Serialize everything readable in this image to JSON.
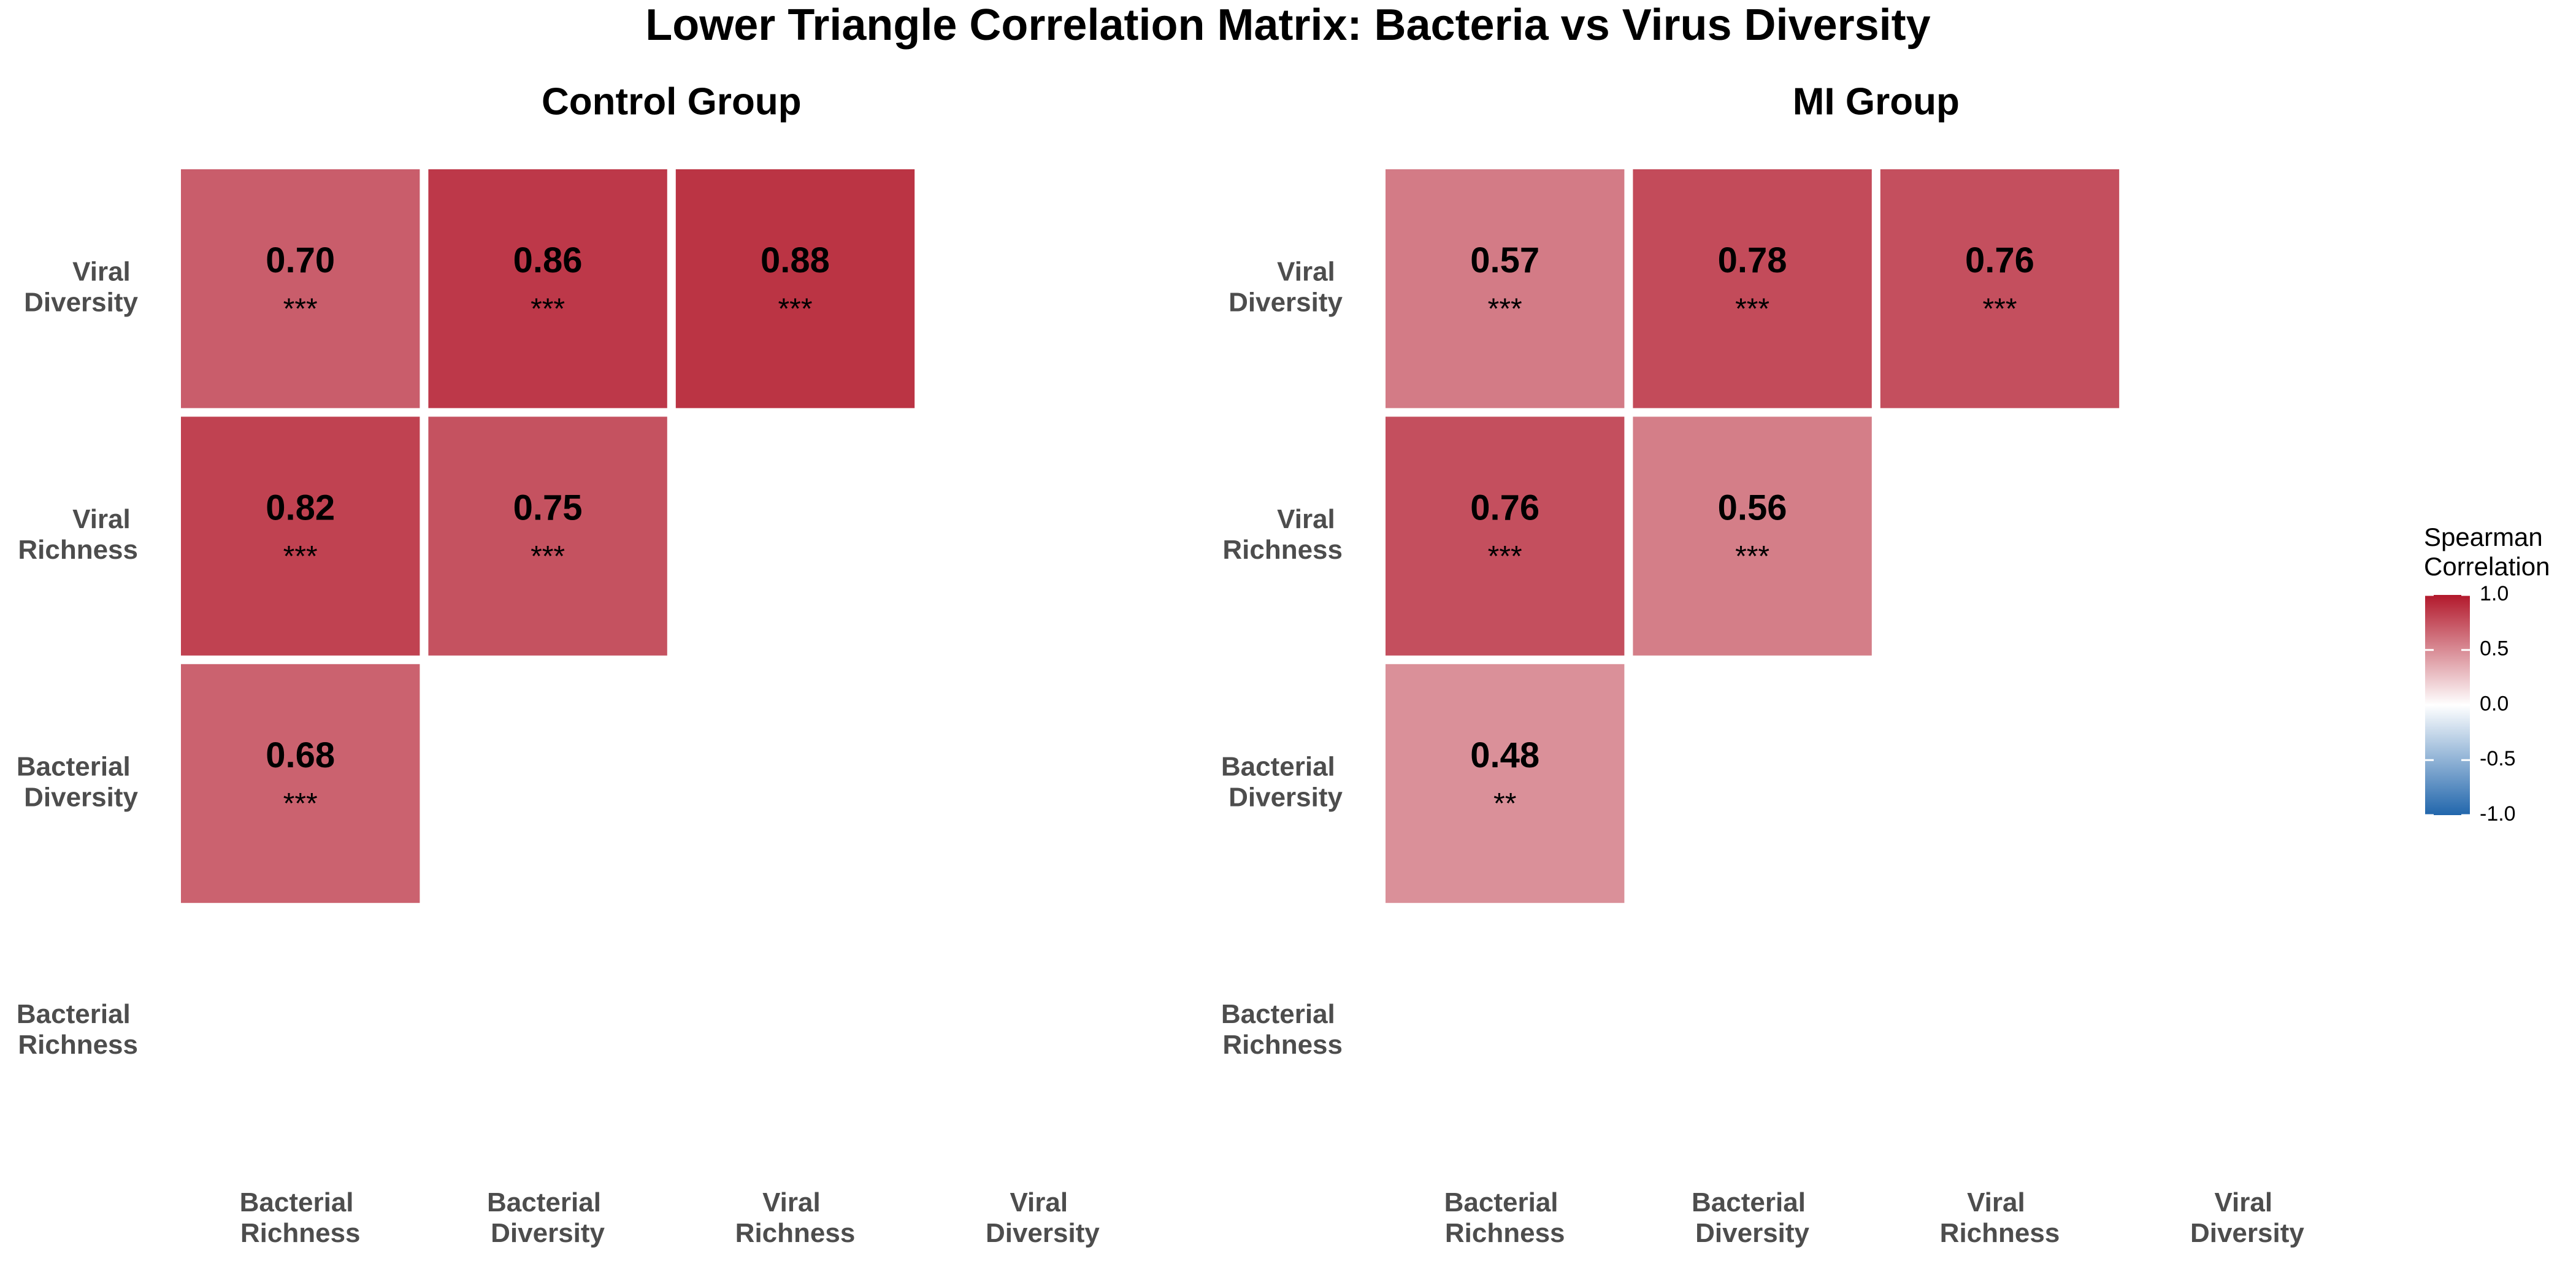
{
  "title": "Lower Triangle Correlation Matrix: Bacteria vs Virus Diversity",
  "colorbar": {
    "title": "Spearman Correlation",
    "lim": [
      -1,
      1
    ],
    "colors": [
      "#2166ac",
      "#ffffff",
      "#b2182b"
    ],
    "ticks": [
      {
        "value": 1,
        "label": "1.0"
      },
      0.5,
      {
        "value": 0,
        "label": "0.0"
      },
      -0.5,
      {
        "value": -1,
        "label": "-1.0"
      }
    ]
  },
  "chart_data": [
    {
      "type": "heatmap",
      "title": "Control Group",
      "x_categories": [
        "Bacterial Richness",
        "Bacterial Diversity",
        "Viral Richness",
        "Viral Diversity"
      ],
      "y_categories": [
        "Bacterial Richness",
        "Bacterial Diversity",
        "Viral Richness",
        "Viral Diversity"
      ],
      "values": [
        [
          null,
          null,
          null,
          null
        ],
        [
          0.68,
          null,
          null,
          null
        ],
        [
          0.82,
          0.75,
          null,
          null
        ],
        [
          0.7,
          0.86,
          0.88,
          null
        ]
      ],
      "value_labels": [
        [
          null,
          null,
          null,
          null
        ],
        [
          "0.68",
          null,
          null,
          null
        ],
        [
          "0.82",
          "0.75",
          null,
          null
        ],
        [
          "0.70",
          "0.86",
          "0.88",
          null
        ]
      ],
      "significance": [
        [
          null,
          null,
          null,
          null
        ],
        [
          "***",
          null,
          null,
          null
        ],
        [
          "***",
          "***",
          null,
          null
        ],
        [
          "***",
          "***",
          "***",
          null
        ]
      ]
    },
    {
      "type": "heatmap",
      "title": "MI Group",
      "x_categories": [
        "Bacterial Richness",
        "Bacterial Diversity",
        "Viral Richness",
        "Viral Diversity"
      ],
      "y_categories": [
        "Bacterial Richness",
        "Bacterial Diversity",
        "Viral Richness",
        "Viral Diversity"
      ],
      "values": [
        [
          null,
          null,
          null,
          null
        ],
        [
          0.48,
          null,
          null,
          null
        ],
        [
          0.76,
          0.56,
          null,
          null
        ],
        [
          0.57,
          0.78,
          0.76,
          null
        ]
      ],
      "value_labels": [
        [
          null,
          null,
          null,
          null
        ],
        [
          "0.48",
          null,
          null,
          null
        ],
        [
          "0.76",
          "0.56",
          null,
          null
        ],
        [
          "0.57",
          "0.78",
          "0.76",
          null
        ]
      ],
      "significance": [
        [
          null,
          null,
          null,
          null
        ],
        [
          "**",
          null,
          null,
          null
        ],
        [
          "***",
          "***",
          null,
          null
        ],
        [
          "***",
          "***",
          "***",
          null
        ]
      ]
    }
  ]
}
